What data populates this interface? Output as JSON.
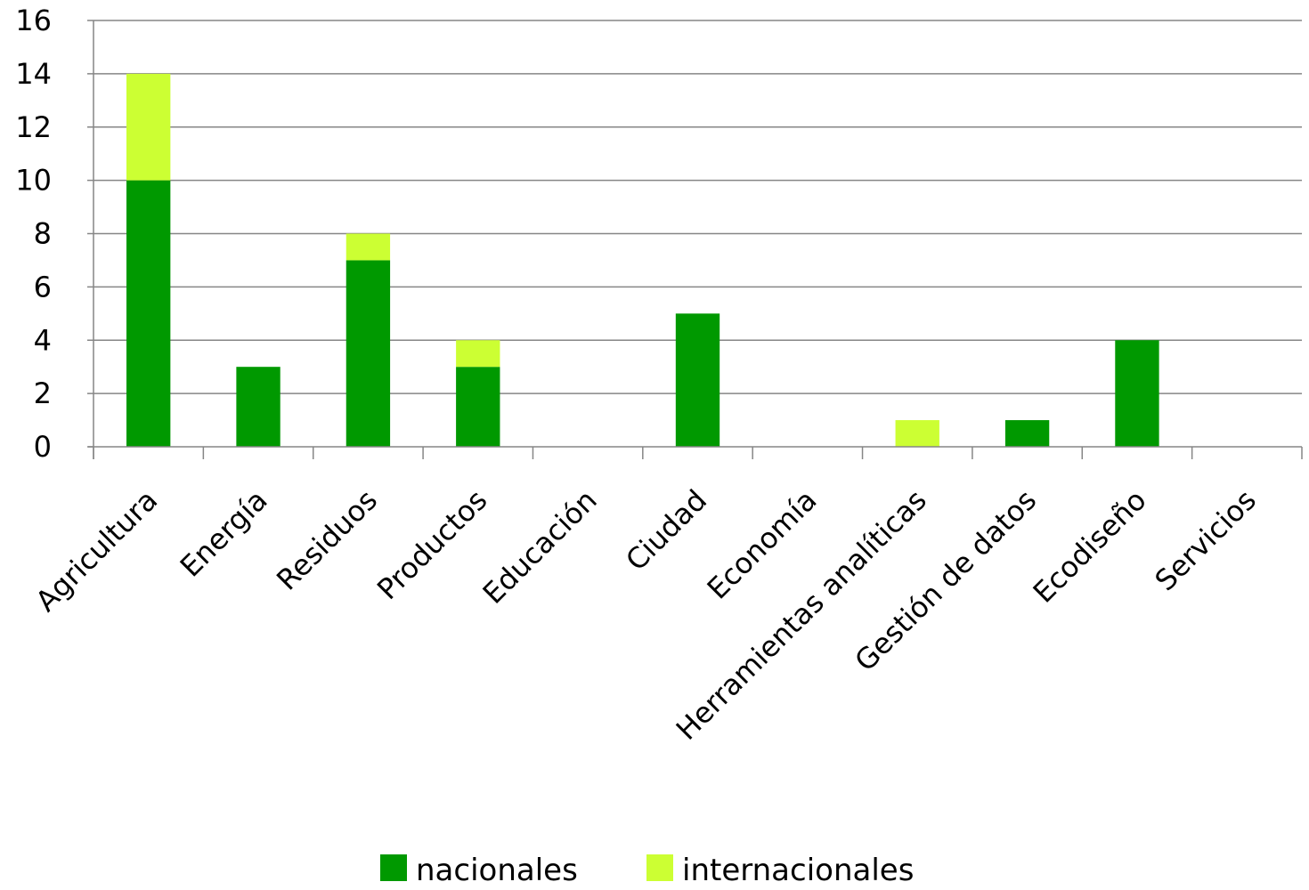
{
  "chart_data": {
    "type": "bar",
    "stacked": true,
    "title": "",
    "xlabel": "",
    "ylabel": "",
    "ylim": [
      0,
      16
    ],
    "yticks": [
      "0",
      "2",
      "4",
      "6",
      "8",
      "10",
      "12",
      "14",
      "16"
    ],
    "grid": true,
    "legend_position": "bottom",
    "categories": [
      "Agricultura",
      "Energía",
      "Residuos",
      "Productos",
      "Educación",
      "Ciudad",
      "Economía",
      "Herramientas analíticas",
      "Gestión de datos",
      "Ecodiseño",
      "Servicios"
    ],
    "series": [
      {
        "name": "nacionales",
        "color": "#009900",
        "values": [
          10,
          3,
          7,
          3,
          0,
          5,
          0,
          0,
          1,
          4,
          0
        ]
      },
      {
        "name": "internacionales",
        "color": "#ccff33",
        "values": [
          4,
          0,
          1,
          1,
          0,
          0,
          0,
          1,
          0,
          0,
          0
        ]
      }
    ]
  }
}
